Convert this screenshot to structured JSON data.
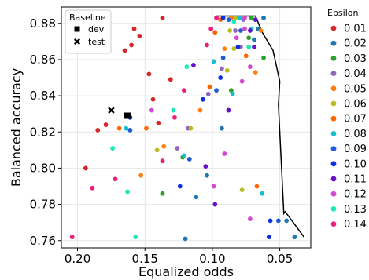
{
  "chart_data": {
    "type": "scatter",
    "xlabel": "Equalized odds",
    "ylabel": "Balanced accuracy",
    "x_inverted": true,
    "xlim": [
      0.212,
      0.027
    ],
    "ylim": [
      0.756,
      0.889
    ],
    "grid": true,
    "x_ticks": [
      {
        "value": 0.2,
        "label": "0.20"
      },
      {
        "value": 0.15,
        "label": "0.15"
      },
      {
        "value": 0.1,
        "label": "0.10"
      },
      {
        "value": 0.05,
        "label": "0.05"
      }
    ],
    "y_ticks": [
      {
        "value": 0.76,
        "label": "0.76"
      },
      {
        "value": 0.78,
        "label": "0.78"
      },
      {
        "value": 0.8,
        "label": "0.80"
      },
      {
        "value": 0.82,
        "label": "0.82"
      },
      {
        "value": 0.84,
        "label": "0.84"
      },
      {
        "value": 0.86,
        "label": "0.86"
      },
      {
        "value": 0.88,
        "label": "0.88"
      }
    ],
    "baseline_legend": {
      "title": "Baseline",
      "placement": "upper-left",
      "items": [
        {
          "label": "dev",
          "marker": "square"
        },
        {
          "label": "test",
          "marker": "x"
        }
      ]
    },
    "baseline_points": [
      {
        "name": "dev",
        "marker": "square",
        "x": 0.163,
        "y": 0.829
      },
      {
        "name": "test",
        "marker": "x",
        "x": 0.175,
        "y": 0.832
      }
    ],
    "epsilon_legend": {
      "title": "Epsilon",
      "placement": "outside-right"
    },
    "series": [
      {
        "name": "0.01",
        "color": "#d62728",
        "points": [
          [
            0.14,
            0.825
          ],
          [
            0.154,
            0.873
          ],
          [
            0.158,
            0.877
          ],
          [
            0.137,
            0.883
          ],
          [
            0.16,
            0.868
          ],
          [
            0.165,
            0.865
          ],
          [
            0.179,
            0.824
          ],
          [
            0.147,
            0.852
          ],
          [
            0.131,
            0.849
          ],
          [
            0.144,
            0.838
          ],
          [
            0.185,
            0.821
          ],
          [
            0.194,
            0.8
          ]
        ]
      },
      {
        "name": "0.02",
        "color": "#1f77b4",
        "points": [
          [
            0.062,
            0.883
          ],
          [
            0.066,
            0.877
          ],
          [
            0.069,
            0.871
          ],
          [
            0.093,
            0.822
          ],
          [
            0.104,
            0.796
          ],
          [
            0.112,
            0.784
          ],
          [
            0.045,
            0.771
          ],
          [
            0.039,
            0.762
          ],
          [
            0.12,
            0.761
          ]
        ]
      },
      {
        "name": "0.03",
        "color": "#2ca02c",
        "points": [
          [
            0.071,
            0.883
          ],
          [
            0.073,
            0.872
          ],
          [
            0.062,
            0.861
          ],
          [
            0.086,
            0.843
          ],
          [
            0.122,
            0.806
          ],
          [
            0.137,
            0.786
          ]
        ]
      },
      {
        "name": "0.04",
        "color": "#9467bd",
        "points": [
          [
            0.077,
            0.882
          ],
          [
            0.083,
            0.876
          ],
          [
            0.079,
            0.867
          ],
          [
            0.093,
            0.855
          ],
          [
            0.103,
            0.841
          ],
          [
            0.118,
            0.822
          ],
          [
            0.126,
            0.811
          ]
        ]
      },
      {
        "name": "0.05",
        "color": "#ff7f0e",
        "points": [
          [
            0.086,
            0.883
          ],
          [
            0.064,
            0.876
          ],
          [
            0.091,
            0.866
          ],
          [
            0.068,
            0.853
          ],
          [
            0.109,
            0.832
          ],
          [
            0.136,
            0.812
          ],
          [
            0.153,
            0.796
          ]
        ]
      },
      {
        "name": "0.06",
        "color": "#bcbd22",
        "points": [
          [
            0.083,
            0.883
          ],
          [
            0.087,
            0.876
          ],
          [
            0.084,
            0.866
          ],
          [
            0.089,
            0.854
          ],
          [
            0.116,
            0.822
          ],
          [
            0.141,
            0.81
          ],
          [
            0.078,
            0.788
          ]
        ]
      },
      {
        "name": "0.07",
        "color": "#ff6600",
        "points": [
          [
            0.094,
            0.882
          ],
          [
            0.098,
            0.875
          ],
          [
            0.075,
            0.862
          ],
          [
            0.102,
            0.845
          ],
          [
            0.149,
            0.822
          ],
          [
            0.169,
            0.822
          ],
          [
            0.067,
            0.79
          ]
        ]
      },
      {
        "name": "0.08",
        "color": "#17becf",
        "points": [
          [
            0.08,
            0.883
          ],
          [
            0.071,
            0.877
          ],
          [
            0.099,
            0.859
          ],
          [
            0.085,
            0.841
          ],
          [
            0.164,
            0.822
          ],
          [
            0.121,
            0.807
          ],
          [
            0.063,
            0.786
          ]
        ]
      },
      {
        "name": "0.09",
        "color": "#1f5bd6",
        "points": [
          [
            0.088,
            0.882
          ],
          [
            0.079,
            0.876
          ],
          [
            0.092,
            0.861
          ],
          [
            0.097,
            0.843
          ],
          [
            0.161,
            0.821
          ],
          [
            0.117,
            0.805
          ],
          [
            0.051,
            0.771
          ]
        ]
      },
      {
        "name": "0.10",
        "color": "#0b2fe0",
        "points": [
          [
            0.092,
            0.883
          ],
          [
            0.081,
            0.867
          ],
          [
            0.094,
            0.85
          ],
          [
            0.107,
            0.838
          ],
          [
            0.161,
            0.828
          ],
          [
            0.124,
            0.79
          ],
          [
            0.057,
            0.771
          ],
          [
            0.058,
            0.762
          ]
        ]
      },
      {
        "name": "0.11",
        "color": "#6610d0",
        "points": [
          [
            0.068,
            0.882
          ],
          [
            0.072,
            0.876
          ],
          [
            0.069,
            0.867
          ],
          [
            0.114,
            0.857
          ],
          [
            0.088,
            0.832
          ],
          [
            0.105,
            0.801
          ],
          [
            0.098,
            0.78
          ]
        ]
      },
      {
        "name": "0.12",
        "color": "#d24ad2",
        "points": [
          [
            0.076,
            0.883
          ],
          [
            0.076,
            0.877
          ],
          [
            0.082,
            0.872
          ],
          [
            0.072,
            0.856
          ],
          [
            0.078,
            0.848
          ],
          [
            0.145,
            0.832
          ],
          [
            0.091,
            0.808
          ],
          [
            0.099,
            0.79
          ],
          [
            0.072,
            0.772
          ]
        ]
      },
      {
        "name": "0.13",
        "color": "#1de9b6",
        "points": [
          [
            0.084,
            0.881
          ],
          [
            0.073,
            0.867
          ],
          [
            0.119,
            0.856
          ],
          [
            0.129,
            0.832
          ],
          [
            0.174,
            0.811
          ],
          [
            0.163,
            0.787
          ],
          [
            0.157,
            0.762
          ]
        ]
      },
      {
        "name": "0.14",
        "color": "#ec1f7a",
        "points": [
          [
            0.097,
            0.883
          ],
          [
            0.101,
            0.877
          ],
          [
            0.104,
            0.868
          ],
          [
            0.121,
            0.843
          ],
          [
            0.128,
            0.828
          ],
          [
            0.137,
            0.804
          ],
          [
            0.172,
            0.794
          ],
          [
            0.189,
            0.789
          ],
          [
            0.204,
            0.762
          ]
        ]
      }
    ],
    "frontier": {
      "color": "#000000",
      "points": [
        [
          0.097,
          0.884
        ],
        [
          0.068,
          0.884
        ],
        [
          0.063,
          0.875
        ],
        [
          0.055,
          0.865
        ],
        [
          0.05,
          0.848
        ],
        [
          0.051,
          0.835
        ],
        [
          0.047,
          0.775
        ],
        [
          0.046,
          0.776
        ],
        [
          0.032,
          0.762
        ]
      ]
    }
  }
}
